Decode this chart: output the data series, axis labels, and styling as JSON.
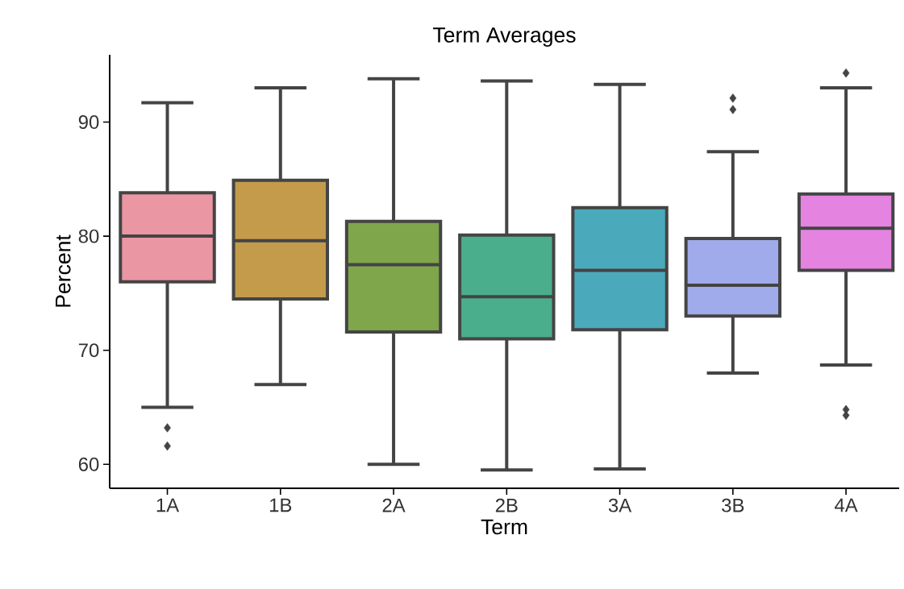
{
  "chart_data": {
    "type": "box",
    "title": "Term Averages",
    "xlabel": "Term",
    "ylabel": "Percent",
    "categories": [
      "1A",
      "1B",
      "2A",
      "2B",
      "3A",
      "3B",
      "4A"
    ],
    "colors": [
      "#ea96a3",
      "#c39b4a",
      "#7fa64a",
      "#4aae8c",
      "#4aaabc",
      "#a0abeb",
      "#e483e0"
    ],
    "boxes": [
      {
        "low": 65.0,
        "q1": 76.0,
        "median": 80.0,
        "q3": 83.8,
        "high": 91.7,
        "outliers": [
          63.2,
          61.6
        ]
      },
      {
        "low": 67.0,
        "q1": 74.5,
        "median": 79.6,
        "q3": 84.9,
        "high": 93.0
      },
      {
        "low": 60.0,
        "q1": 71.6,
        "median": 77.5,
        "q3": 81.3,
        "high": 93.8
      },
      {
        "low": 59.5,
        "q1": 71.0,
        "median": 74.7,
        "q3": 80.1,
        "high": 93.6
      },
      {
        "low": 59.6,
        "q1": 71.8,
        "median": 77.0,
        "q3": 82.5,
        "high": 93.3
      },
      {
        "low": 68.0,
        "q1": 73.0,
        "median": 75.7,
        "q3": 79.8,
        "high": 87.4,
        "outliers": [
          92.1,
          91.1
        ]
      },
      {
        "low": 68.7,
        "q1": 77.0,
        "median": 80.7,
        "q3": 83.7,
        "high": 93.0,
        "outliers": [
          94.3,
          64.8,
          64.3
        ]
      }
    ],
    "ylim": [
      57.9,
      95.9
    ],
    "yticks": [
      60,
      70,
      80,
      90
    ],
    "marker": "diamond"
  }
}
